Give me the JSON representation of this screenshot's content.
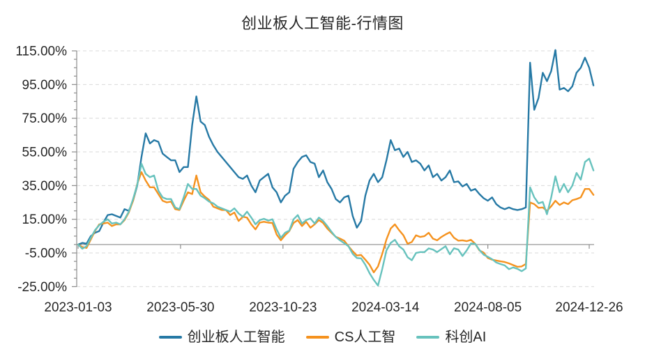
{
  "title": "创业板人工智能-行情图",
  "colors": {
    "series_blue": "#2679A5",
    "series_orange": "#F5921E",
    "series_teal": "#67C2BD",
    "gridline": "#d9d9d9",
    "axis": "#8c8c8c",
    "zero_line": "#7f7f7f",
    "text": "#262626",
    "background": "#ffffff"
  },
  "chart_data": {
    "type": "line",
    "title": "创业板人工智能-行情图",
    "unit": "%",
    "grid": "horizontal dashed gridlines at 20% steps",
    "legend_position": "bottom",
    "x_axis": {
      "kind": "trading-day index (2023-01-03 to 2024-12-26), series sampled every 4 trading days",
      "tick_labels": [
        "2023-01-03",
        "2023-05-30",
        "2023-10-23",
        "2024-03-14",
        "2024-08-05",
        "2024-12-26"
      ],
      "tick_positions": [
        0,
        97,
        194,
        291,
        388,
        484
      ],
      "day_max": 488,
      "sample_step": 4
    },
    "y_axis": {
      "tick_labels": [
        "115.00%",
        "95.00%",
        "75.00%",
        "55.00%",
        "35.00%",
        "15.00%",
        "-5.00%",
        "-25.00%"
      ],
      "max": 115,
      "min": -25,
      "major_step": 20,
      "minor_step": 5
    },
    "series": [
      {
        "name": "创业板人工智能",
        "color": "#2679A5",
        "values": [
          0,
          1,
          0.5,
          5,
          7,
          8,
          13,
          17.5,
          18,
          17,
          16,
          21,
          20,
          26,
          35,
          52,
          66,
          60,
          62,
          61,
          54,
          52,
          50,
          50,
          43,
          46,
          46,
          71,
          88,
          73,
          71,
          64,
          59,
          55,
          52,
          49,
          46,
          43,
          40,
          39,
          41,
          35,
          31,
          38,
          40,
          42,
          34,
          31,
          25,
          29,
          31,
          45,
          49,
          52,
          53,
          49,
          48,
          40,
          44,
          37,
          33,
          27,
          25,
          28,
          29,
          17,
          10,
          14,
          29,
          38,
          42,
          37,
          40,
          50,
          62,
          56,
          57,
          52,
          55,
          49,
          50,
          48,
          44,
          47,
          40,
          42,
          38,
          40,
          44,
          37,
          37.5,
          34.5,
          36,
          32,
          33,
          30,
          27.5,
          26,
          28,
          24,
          22,
          21,
          22,
          21,
          20.5,
          21,
          22,
          108,
          80,
          87,
          102,
          97,
          103,
          115.5,
          92,
          93,
          91,
          94,
          102,
          105,
          111,
          105,
          94.5
        ]
      },
      {
        "name": "CS人工智",
        "color": "#F5921E",
        "values": [
          0,
          -1.5,
          -2,
          3,
          8,
          12,
          12.5,
          13,
          11,
          12,
          12,
          14.5,
          19,
          26,
          36,
          43,
          38,
          34,
          34,
          30,
          26,
          25,
          25.5,
          21,
          20.5,
          26,
          31,
          30,
          41,
          31,
          28.5,
          26.5,
          22.5,
          21.5,
          20.5,
          20.5,
          17.5,
          19,
          14,
          16.5,
          16,
          12,
          9,
          13,
          13.5,
          13,
          12.8,
          6,
          2.5,
          5.5,
          8,
          12.8,
          14.5,
          11,
          13.5,
          10,
          12,
          14.5,
          12.8,
          9.5,
          7,
          4.6,
          3.5,
          2.3,
          -1,
          -4,
          -6.5,
          -6.2,
          -9,
          -12,
          -16.5,
          -13,
          -5.5,
          3,
          9.5,
          12,
          8.5,
          5.5,
          0.5,
          1.5,
          5.5,
          4.5,
          5,
          7,
          3.5,
          2.5,
          4.5,
          6,
          7.3,
          4,
          2.3,
          2.5,
          2,
          2.8,
          0.5,
          -3.5,
          -4.8,
          -8,
          -9,
          -9.5,
          -10,
          -10.4,
          -11.2,
          -12.2,
          -13.2,
          -13,
          -11.5,
          25,
          24,
          21.8,
          22,
          20,
          22.7,
          26,
          23.5,
          25,
          24,
          26.3,
          27,
          28,
          33,
          33,
          29.5
        ]
      },
      {
        "name": "科创AI",
        "color": "#67C2BD",
        "values": [
          0,
          -2.5,
          -1,
          4,
          8.5,
          11.5,
          13.5,
          15,
          12.5,
          13,
          12,
          15,
          19.5,
          27,
          35.5,
          48,
          42,
          40,
          41,
          32,
          28,
          27,
          27,
          22,
          21,
          28,
          36,
          33,
          33,
          29,
          27.5,
          25.5,
          24.5,
          22.5,
          21.5,
          20.5,
          19.5,
          21.5,
          18.5,
          16.5,
          19.5,
          16,
          12,
          14.5,
          15.3,
          14.2,
          15,
          9,
          4,
          7,
          8.3,
          15,
          17.5,
          12.5,
          14.5,
          15.5,
          12.5,
          16,
          14,
          11,
          7.5,
          4.5,
          2.5,
          0.8,
          -1,
          -5.5,
          -8,
          -8.2,
          -12,
          -17,
          -21,
          -24.4,
          -14.5,
          -3.5,
          1,
          2.8,
          -1,
          -3,
          -7.5,
          -9.3,
          -5,
          -4.5,
          -4.5,
          -2.3,
          -3,
          -4.5,
          -2.7,
          -1,
          -5.8,
          -2.2,
          -3,
          -6.8,
          -3.5,
          0.6,
          0.5,
          -3.2,
          -6,
          -7.3,
          -8.7,
          -10.7,
          -11.6,
          -12.4,
          -14.6,
          -13.6,
          -14.4,
          -15.8,
          -14.2,
          34,
          28,
          24.5,
          25.3,
          18,
          28,
          40.5,
          31,
          36,
          31,
          35,
          42.5,
          38.5,
          49,
          51,
          44
        ]
      }
    ]
  },
  "legend": {
    "items": [
      {
        "label": "创业板人工智能"
      },
      {
        "label": "CS人工智"
      },
      {
        "label": "科创AI"
      }
    ]
  }
}
